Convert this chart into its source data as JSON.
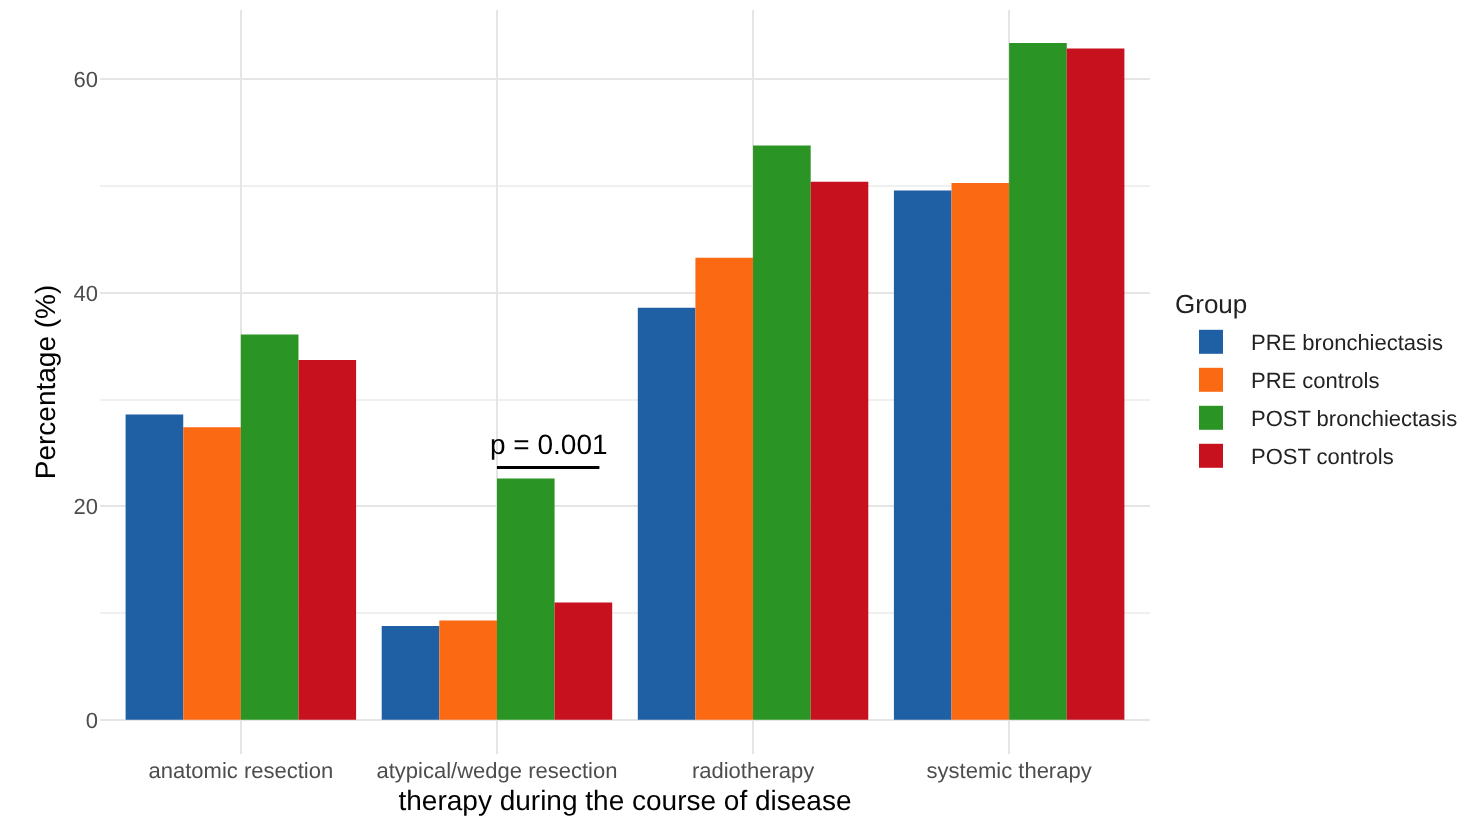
{
  "chart_data": {
    "type": "bar",
    "xlabel": "therapy during the course of disease",
    "ylabel": "Percentage (%)",
    "legend_title": "Group",
    "categories": [
      "anatomic resection",
      "atypical/wedge resection",
      "radiotherapy",
      "systemic therapy"
    ],
    "series": [
      {
        "name": "PRE bronchiectasis",
        "color": "#1f5fa3",
        "values": [
          28.6,
          8.8,
          38.6,
          49.6
        ]
      },
      {
        "name": "PRE controls",
        "color": "#fb6a12",
        "values": [
          27.4,
          9.3,
          43.3,
          50.3
        ]
      },
      {
        "name": "POST bronchiectasis",
        "color": "#2a9424",
        "values": [
          36.1,
          22.6,
          53.8,
          63.4
        ]
      },
      {
        "name": "POST controls",
        "color": "#c8111f",
        "values": [
          33.7,
          11.0,
          50.4,
          62.9
        ]
      }
    ],
    "annotations": [
      "p = 0.001"
    ],
    "ylim": [
      -3.2,
      66.5
    ],
    "yticks": [
      0,
      20,
      40,
      60
    ],
    "grid": true,
    "legend": "right"
  }
}
